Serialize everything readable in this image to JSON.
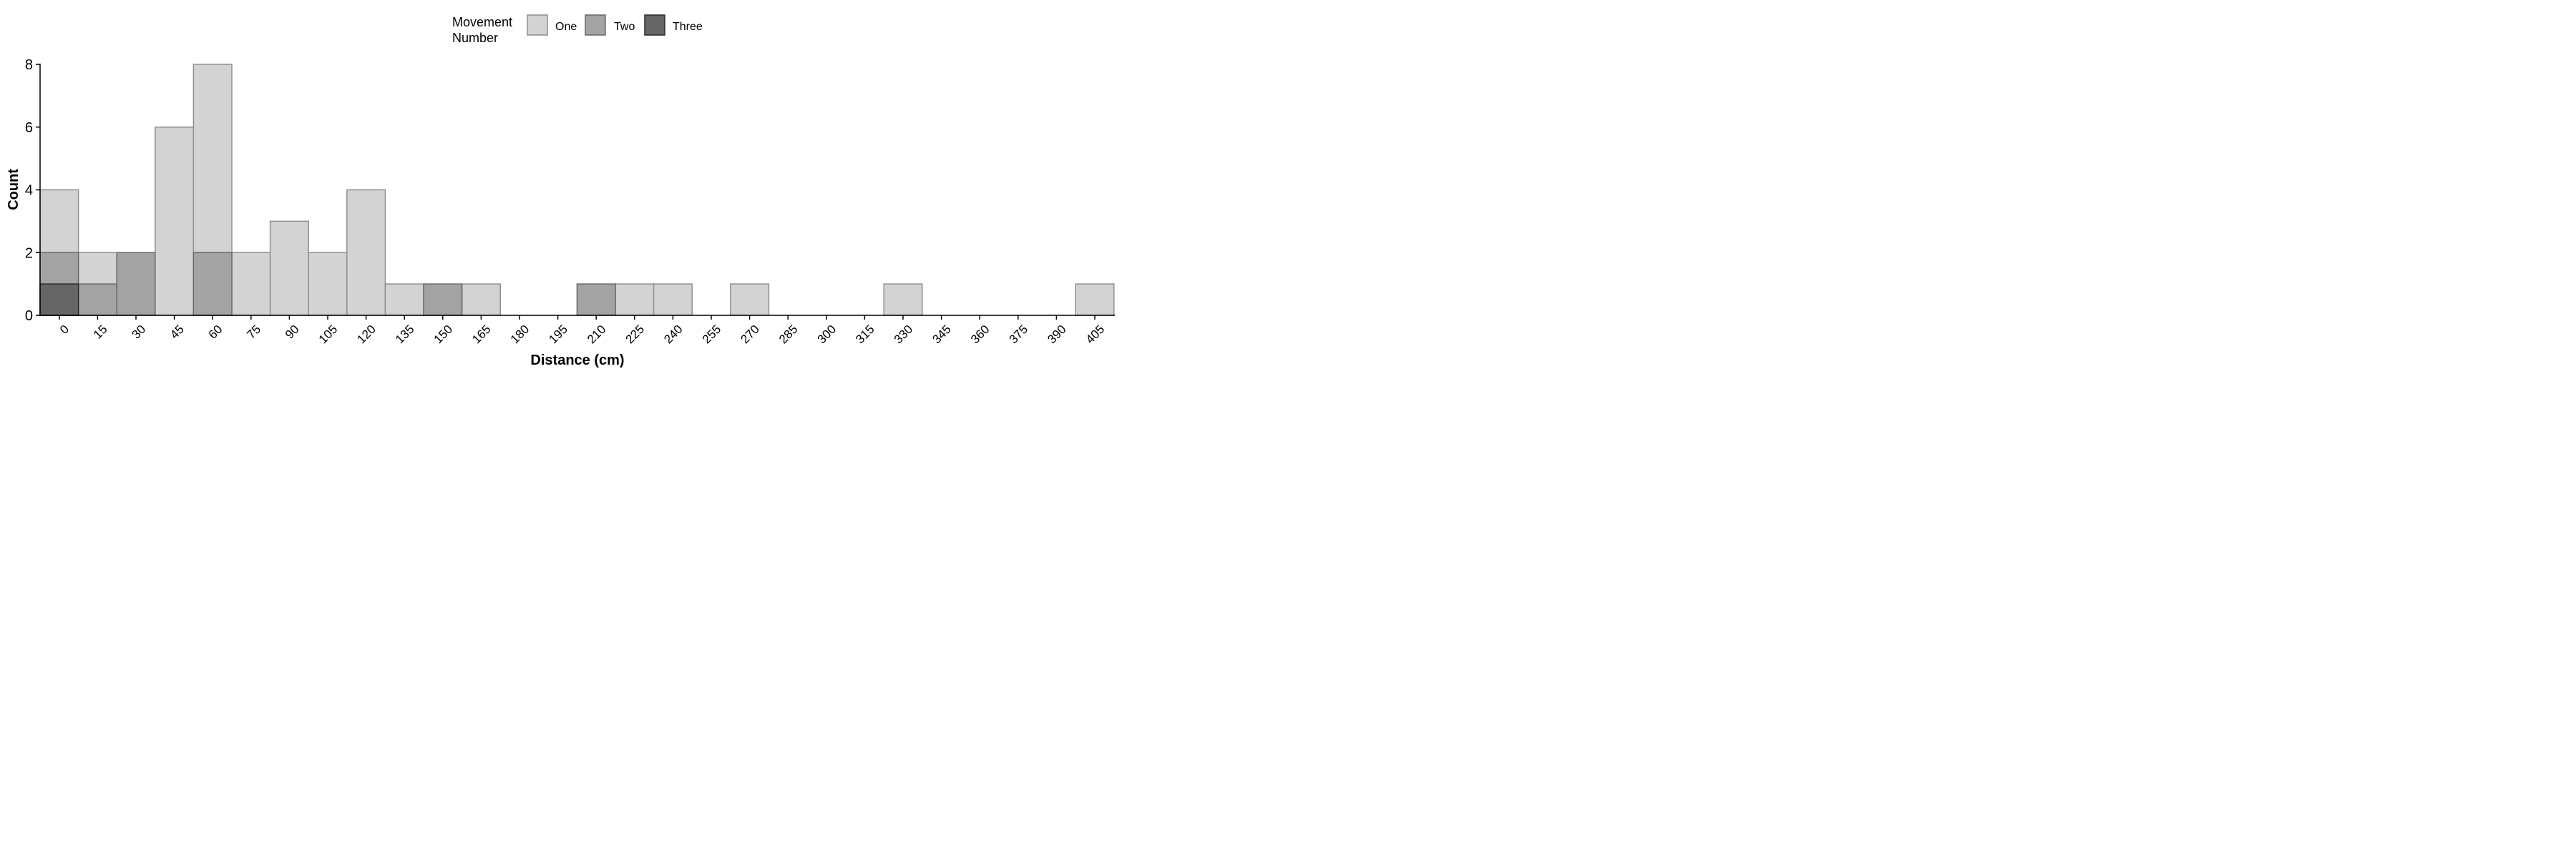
{
  "chart_data": {
    "type": "bar",
    "stacked": "overlay",
    "xlabel": "Distance (cm)",
    "ylabel": "Count",
    "ylim": [
      0,
      8
    ],
    "yticks": [
      0,
      2,
      4,
      6,
      8
    ],
    "categories": [
      "0",
      "15",
      "30",
      "45",
      "60",
      "75",
      "90",
      "105",
      "120",
      "135",
      "150",
      "165",
      "180",
      "195",
      "210",
      "225",
      "240",
      "255",
      "270",
      "285",
      "300",
      "315",
      "330",
      "345",
      "360",
      "375",
      "390",
      "405"
    ],
    "legend": {
      "title": "Movement\nNumber",
      "title_lines": [
        "Movement",
        "Number"
      ],
      "position": "top"
    },
    "series": [
      {
        "name": "One",
        "color": "#d3d3d3",
        "values": [
          4,
          2,
          0,
          6,
          8,
          2,
          3,
          2,
          4,
          1,
          0,
          1,
          0,
          0,
          0,
          1,
          1,
          0,
          1,
          0,
          0,
          0,
          1,
          0,
          0,
          0,
          0,
          1
        ]
      },
      {
        "name": "Two",
        "color": "#a3a3a3",
        "values": [
          2,
          1,
          2,
          0,
          2,
          0,
          0,
          0,
          0,
          0,
          1,
          0,
          0,
          0,
          1,
          0,
          0,
          0,
          0,
          0,
          0,
          0,
          0,
          0,
          0,
          0,
          0,
          0
        ]
      },
      {
        "name": "Three",
        "color": "#666666",
        "values": [
          1,
          0,
          0,
          0,
          0,
          0,
          0,
          0,
          0,
          0,
          0,
          0,
          0,
          0,
          0,
          0,
          0,
          0,
          0,
          0,
          0,
          0,
          0,
          0,
          0,
          0,
          0,
          0
        ]
      }
    ],
    "grid": false
  }
}
